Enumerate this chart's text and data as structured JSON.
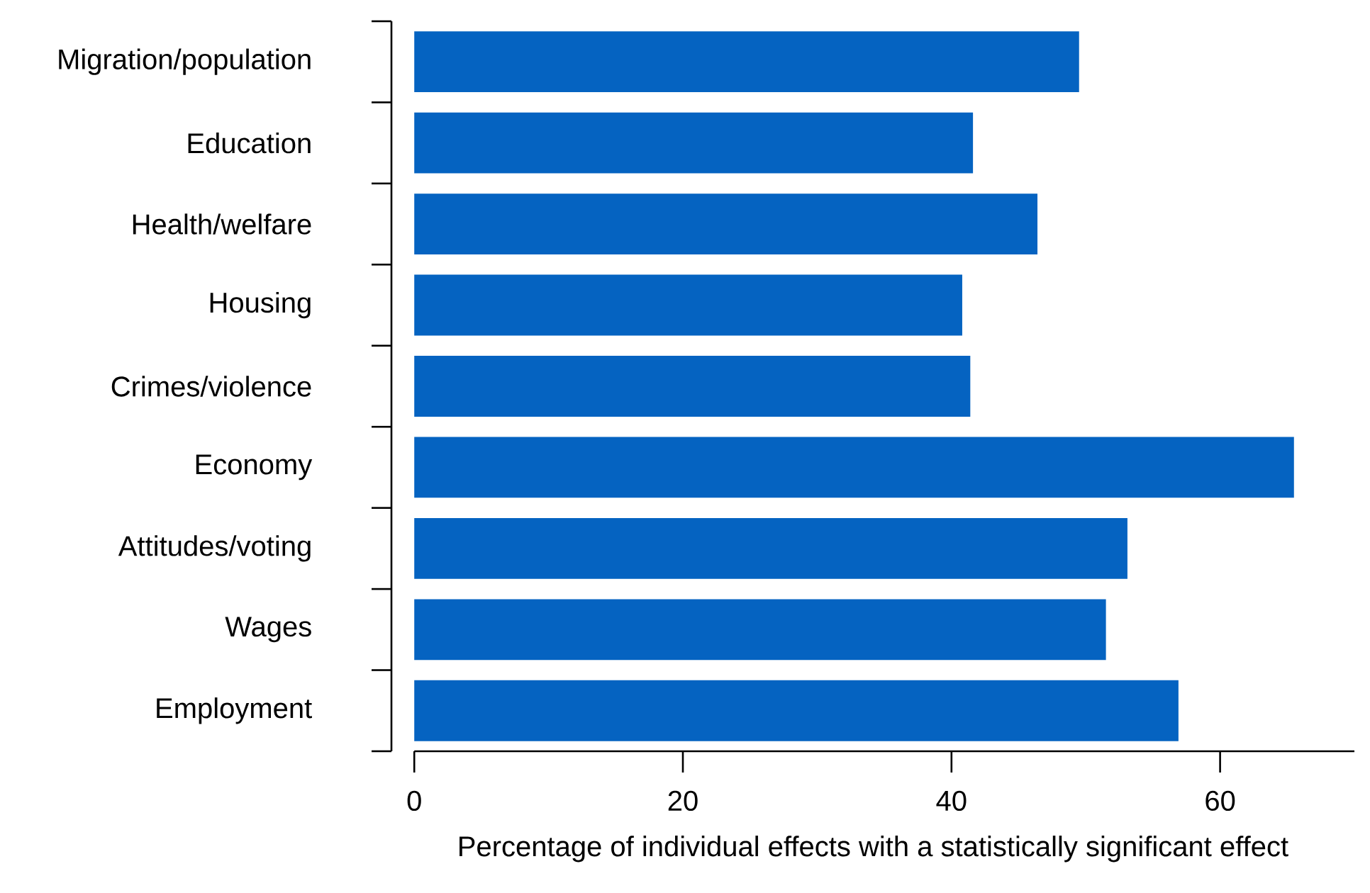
{
  "chart_data": {
    "type": "bar",
    "orientation": "horizontal",
    "categories": [
      "Migration/population",
      "Education",
      "Health/welfare",
      "Housing",
      "Crimes/violence",
      "Economy",
      "Attitudes/voting",
      "Wages",
      "Employment"
    ],
    "values": [
      49.5,
      41.6,
      46.4,
      40.8,
      41.4,
      65.5,
      53.1,
      51.5,
      56.9
    ],
    "color": "#0563c1",
    "xlim": [
      0,
      70
    ],
    "xticks": [
      0,
      20,
      40,
      60
    ],
    "xlabel": "Percentage of individual effects with a statistically significant effect"
  }
}
